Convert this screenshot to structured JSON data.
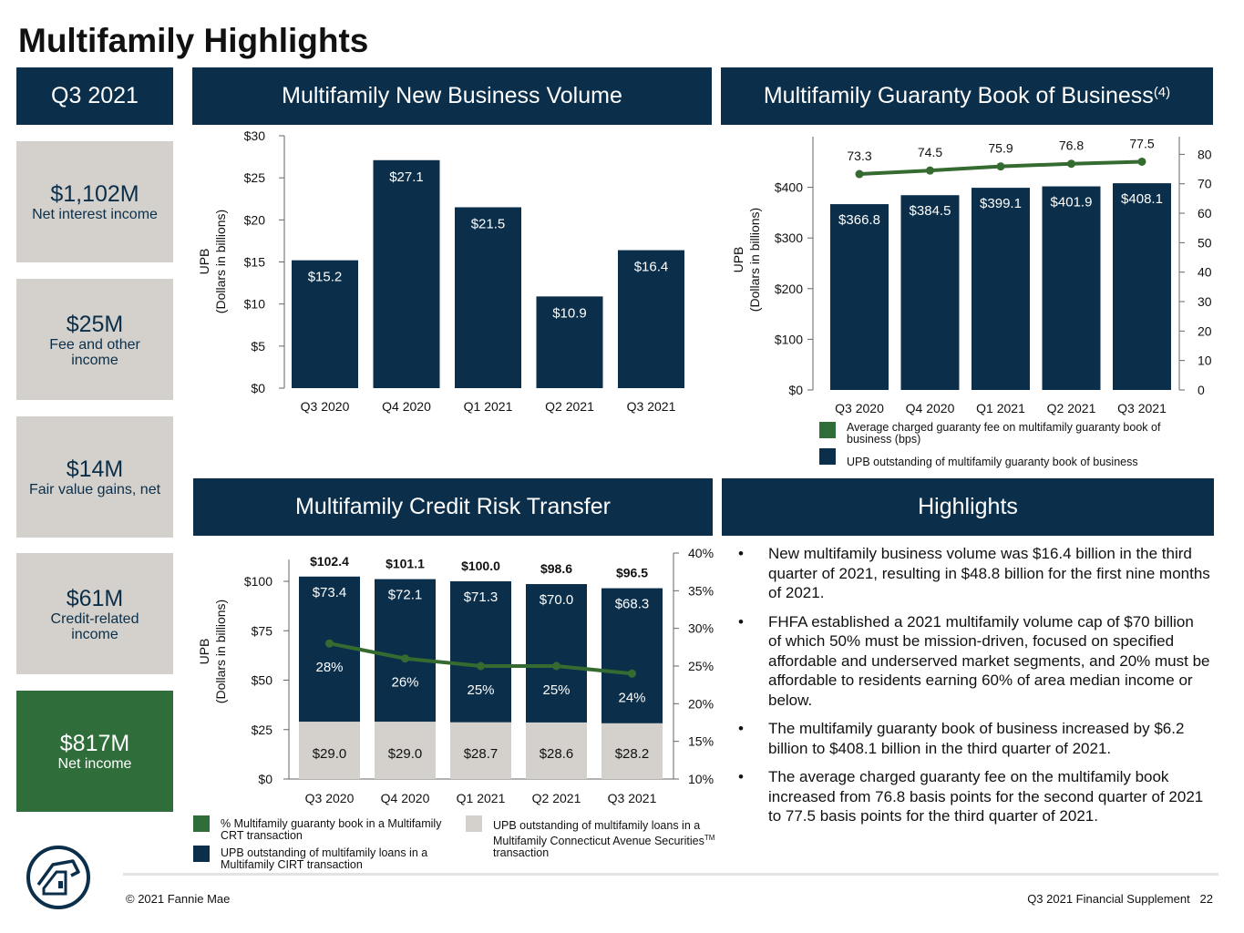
{
  "page": {
    "title": "Multifamily Highlights",
    "footer_left": "© 2021 Fannie Mae",
    "footer_right": "Q3 2021 Financial Supplement   22"
  },
  "colors": {
    "navy": "#0b2f4a",
    "green": "#2f6d3a",
    "gray": "#d4d1cc",
    "line_green": "#356b30"
  },
  "kpi": {
    "header": "Q3 2021",
    "items": [
      {
        "value": "$1,102M",
        "label": "Net interest income"
      },
      {
        "value": "$25M",
        "label": "Fee and other income"
      },
      {
        "value": "$14M",
        "label": "Fair value gains, net"
      },
      {
        "value": "$61M",
        "label": "Credit-related income"
      },
      {
        "value": "$817M",
        "label": "Net income"
      }
    ]
  },
  "panels": {
    "new_business": "Multifamily New Business Volume",
    "guaranty_book": "Multifamily Guaranty Book of Business",
    "guaranty_book_sup": "(4)",
    "crt": "Multifamily Credit Risk Transfer",
    "highlights": "Highlights"
  },
  "chart_data": [
    {
      "type": "bar",
      "categories": [
        "Q3 2020",
        "Q4 2020",
        "Q1 2021",
        "Q2 2021",
        "Q3 2021"
      ],
      "values": [
        15.2,
        27.1,
        21.5,
        10.9,
        16.4
      ],
      "value_labels": [
        "$15.2",
        "$27.1",
        "$21.5",
        "$10.9",
        "$16.4"
      ],
      "ylabel": "UPB",
      "ylabel2": "(Dollars in billions)",
      "ylim": [
        0,
        30
      ],
      "yticks": [
        "$0",
        "$5",
        "$10",
        "$15",
        "$20",
        "$25",
        "$30"
      ],
      "grid": false
    },
    {
      "type": "bar",
      "categories": [
        "Q3 2020",
        "Q4 2020",
        "Q1 2021",
        "Q2 2021",
        "Q3 2021"
      ],
      "series": [
        {
          "name": "UPB outstanding of multifamily guaranty book of business",
          "values": [
            366.8,
            384.5,
            399.1,
            401.9,
            408.1
          ],
          "labels": [
            "$366.8",
            "$384.5",
            "$399.1",
            "$401.9",
            "$408.1"
          ],
          "axis": "left"
        },
        {
          "name": "Average charged guaranty fee on multifamily guaranty book of business (bps)",
          "values": [
            73.3,
            74.5,
            75.9,
            76.8,
            77.5
          ],
          "labels": [
            "73.3",
            "74.5",
            "75.9",
            "76.8",
            "77.5"
          ],
          "axis": "right",
          "type": "line"
        }
      ],
      "ylabel": "UPB",
      "ylabel2": "(Dollars in billions)",
      "ylim": [
        0,
        500
      ],
      "yticks": [
        "$0",
        "$100",
        "$200",
        "$300",
        "$400"
      ],
      "y2lim": [
        0,
        86
      ],
      "y2ticks": [
        "0",
        "10",
        "20",
        "30",
        "40",
        "50",
        "60",
        "70",
        "80"
      ],
      "legend_position": "bottom",
      "grid": false
    },
    {
      "type": "bar",
      "stacked": true,
      "categories": [
        "Q3 2020",
        "Q4 2020",
        "Q1 2021",
        "Q2 2021",
        "Q3 2021"
      ],
      "series": [
        {
          "name": "UPB outstanding of multifamily loans in a Multifamily Connecticut Avenue Securities™ transaction",
          "values": [
            29.0,
            29.0,
            28.7,
            28.6,
            28.2
          ],
          "labels": [
            "$29.0",
            "$29.0",
            "$28.7",
            "$28.6",
            "$28.2"
          ],
          "axis": "left"
        },
        {
          "name": "UPB outstanding of multifamily loans in a Multifamily CIRT transaction",
          "values": [
            73.4,
            72.1,
            71.3,
            70.0,
            68.3
          ],
          "labels": [
            "$73.4",
            "$72.1",
            "$71.3",
            "$70.0",
            "$68.3"
          ],
          "axis": "left"
        },
        {
          "name": "% Multifamily guaranty book in a Multifamily CRT transaction",
          "values": [
            28,
            26,
            25,
            25,
            24
          ],
          "labels": [
            "28%",
            "26%",
            "25%",
            "25%",
            "24%"
          ],
          "axis": "right",
          "type": "line"
        }
      ],
      "totals": [
        "$102.4",
        "$101.1",
        "$100.0",
        "$98.6",
        "$96.5"
      ],
      "ylabel": "UPB",
      "ylabel2": "(Dollars in billions)",
      "ylim": [
        0,
        111
      ],
      "yticks": [
        "$0",
        "$25",
        "$50",
        "$75",
        "$100"
      ],
      "y2lim": [
        10,
        40
      ],
      "y2ticks": [
        "10%",
        "15%",
        "20%",
        "25%",
        "30%",
        "35%",
        "40%"
      ],
      "legend_position": "bottom",
      "grid": false
    }
  ],
  "legends": {
    "guaranty": [
      {
        "color": "#2f6d3a",
        "text": "Average charged guaranty fee on multifamily guaranty book of business (bps)"
      },
      {
        "color": "#0b2f4a",
        "text": "UPB outstanding of multifamily guaranty book of business"
      }
    ],
    "crt": [
      {
        "color": "#2f6d3a",
        "text": "% Multifamily guaranty book in a Multifamily CRT transaction"
      },
      {
        "color": "#0b2f4a",
        "text": "UPB outstanding of multifamily loans in a Multifamily CIRT transaction"
      },
      {
        "color": "#d4d1cc",
        "text": "UPB outstanding of multifamily loans in a Multifamily Connecticut Avenue Securities",
        "tm": "TM",
        "text_after": " transaction"
      }
    ]
  },
  "highlights": [
    "New multifamily business volume was $16.4 billion in the third quarter of 2021, resulting in $48.8 billion for the first nine months of 2021.",
    "FHFA established a 2021 multifamily volume cap of $70 billion of which 50% must be mission-driven, focused on specified affordable and underserved market segments, and 20% must be affordable to residents earning 60% of area median income or below.",
    "The multifamily guaranty book of business increased by $6.2 billion to $408.1 billion in the third quarter of 2021.",
    "The average charged guaranty fee on the multifamily book increased from 76.8 basis points for the second quarter of 2021 to 77.5 basis points for the third quarter of 2021."
  ]
}
